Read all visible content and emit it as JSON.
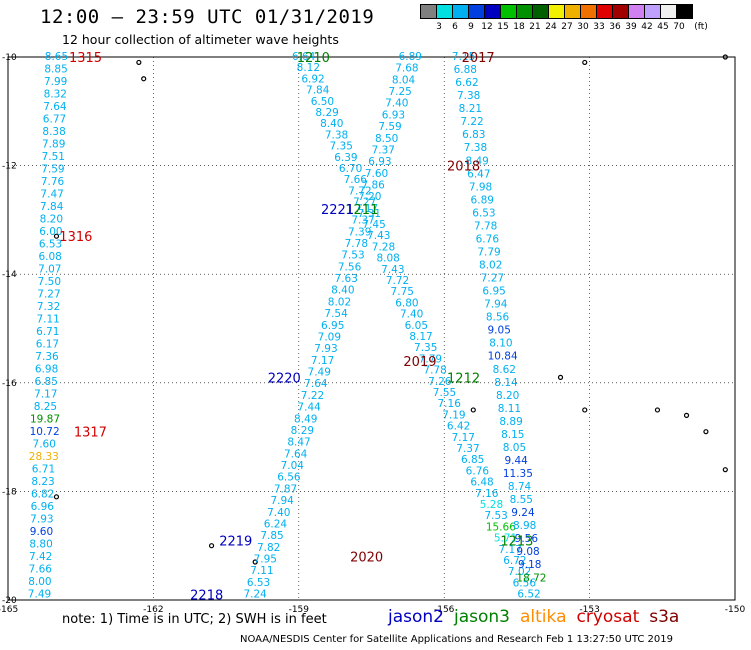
{
  "header": {
    "title": "12:00 – 23:59 UTC 01/31/2019",
    "subtitle": "12 hour collection of altimeter wave heights"
  },
  "colorbar": {
    "unit": "(ft)",
    "ticks": [
      "3",
      "6",
      "9",
      "12",
      "15",
      "18",
      "21",
      "24",
      "27",
      "30",
      "33",
      "36",
      "39",
      "42",
      "45",
      "70"
    ],
    "colors": [
      "#808080",
      "#00e0e0",
      "#00b0f0",
      "#0040e0",
      "#0000c0",
      "#00c000",
      "#009000",
      "#006000",
      "#f0f000",
      "#f0b000",
      "#f07000",
      "#e00000",
      "#a00000",
      "#d080f0",
      "#c0a0ff",
      "#f0f0f0",
      "#000000"
    ]
  },
  "footnote": "note:  1) Time is in UTC;  2) SWH is in feet",
  "credit": "NOAA/NESDIS Center for Satellite Applications and Research    Feb  1 13:27:50 UTC 2019",
  "missions": [
    {
      "name": "jason2",
      "color": "#0000c0"
    },
    {
      "name": "jason3",
      "color": "#008000"
    },
    {
      "name": "altika",
      "color": "#ff8c00"
    },
    {
      "name": "cryosat",
      "color": "#d00000"
    },
    {
      "name": "s3a",
      "color": "#800000"
    }
  ],
  "chart_data": {
    "type": "scatter",
    "title": "12:00 – 23:59 UTC 01/31/2019",
    "xlabel": "",
    "ylabel": "",
    "xlim": [
      -165,
      -150
    ],
    "ylim": [
      -20,
      -10
    ],
    "xticks": [
      "-165",
      "-162",
      "-159",
      "-156",
      "-153",
      "-150"
    ],
    "yticks": [
      "-10",
      "-12",
      "-14",
      "-16",
      "-18",
      "-20"
    ],
    "grid": true,
    "pass_labels": [
      {
        "text": "1315",
        "lon": -163.4,
        "lat": -10.0,
        "color": "#d00000"
      },
      {
        "text": "1316",
        "lon": -163.6,
        "lat": -13.3,
        "color": "#d00000"
      },
      {
        "text": "1317",
        "lon": -163.3,
        "lat": -16.9,
        "color": "#d00000"
      },
      {
        "text": "1210",
        "lon": -158.7,
        "lat": -10.0,
        "color": "#008000"
      },
      {
        "text": "1211",
        "lon": -157.7,
        "lat": -12.8,
        "color": "#008000"
      },
      {
        "text": "1212",
        "lon": -155.6,
        "lat": -15.9,
        "color": "#008000"
      },
      {
        "text": "1213",
        "lon": -154.5,
        "lat": -18.9,
        "color": "#008000"
      },
      {
        "text": "2017",
        "lon": -155.3,
        "lat": -10.0,
        "color": "#800000"
      },
      {
        "text": "2018",
        "lon": -155.6,
        "lat": -12.0,
        "color": "#800000"
      },
      {
        "text": "2019",
        "lon": -156.5,
        "lat": -15.6,
        "color": "#800000"
      },
      {
        "text": "2020",
        "lon": -157.6,
        "lat": -19.2,
        "color": "#800000"
      },
      {
        "text": "2221",
        "lon": -158.2,
        "lat": -12.8,
        "color": "#0000c0"
      },
      {
        "text": "2220",
        "lon": -159.3,
        "lat": -15.9,
        "color": "#0000c0"
      },
      {
        "text": "2219",
        "lon": -160.3,
        "lat": -18.9,
        "color": "#0000c0"
      },
      {
        "text": "2218",
        "lon": -160.9,
        "lat": -19.9,
        "color": "#0000c0"
      }
    ],
    "series": [
      {
        "name": "1315-1317",
        "start": [
          -164.0,
          -10.0
        ],
        "end": [
          -164.35,
          -19.9
        ],
        "values": [
          "8.65",
          "8.85",
          "7.99",
          "8.32",
          "7.64",
          "6.77",
          "8.38",
          "7.89",
          "7.51",
          "7.59",
          "7.76",
          "7.47",
          "7.84",
          "8.20",
          "6.00",
          "6.53",
          "6.08",
          "7.07",
          "7.50",
          "7.27",
          "7.32",
          "7.11",
          "6.71",
          "6.17",
          "7.36",
          "6.98",
          "6.85",
          "7.17",
          "8.25",
          "19.87",
          "10.72",
          "7.60",
          "28.33",
          "6.71",
          "8.23",
          "6.82",
          "6.96",
          "7.93",
          "9.60",
          "8.80",
          "7.42",
          "7.66",
          "8.00",
          "7.49"
        ]
      },
      {
        "name": "1210-1213",
        "start": [
          -158.9,
          -10.0
        ],
        "end": [
          -154.25,
          -19.9
        ],
        "values": [
          "6.64",
          "8.12",
          "6.92",
          "7.84",
          "6.50",
          "8.29",
          "8.40",
          "7.38",
          "7.35",
          "6.39",
          "6.70",
          "7.66",
          "7.72",
          "7.27",
          "7.31",
          "7.45",
          "7.43",
          "7.28",
          "8.08",
          "7.43",
          "7.72",
          "7.75",
          "6.80",
          "7.40",
          "6.05",
          "8.17",
          "7.35",
          "7.79",
          "7.78",
          "7.26",
          "7.55",
          "7.16",
          "7.19",
          "6.42",
          "7.17",
          "7.37",
          "6.85",
          "6.76",
          "6.48",
          "7.16",
          "5.28",
          "7.53",
          "15.66",
          "5.71",
          "7.17",
          "6.72",
          "7.02",
          "6.56",
          "6.52"
        ]
      },
      {
        "name": "2017-2020",
        "start": [
          -156.7,
          -10.0
        ],
        "end": [
          -159.9,
          -19.9
        ],
        "values": [
          "6.89",
          "7.68",
          "8.04",
          "7.25",
          "7.40",
          "6.93",
          "7.59",
          "8.50",
          "7.37",
          "6.93",
          "7.60",
          "7.86",
          "7.20",
          "7.17",
          "7.37",
          "7.39",
          "7.78",
          "7.53",
          "7.56",
          "7.63",
          "8.40",
          "8.02",
          "7.54",
          "6.95",
          "7.09",
          "7.93",
          "7.17",
          "7.49",
          "7.64",
          "7.22",
          "7.44",
          "8.49",
          "8.29",
          "8.47",
          "7.64",
          "7.04",
          "6.56",
          "7.87",
          "7.94",
          "7.40",
          "6.24",
          "7.85",
          "7.82",
          "7.95",
          "7.11",
          "6.53",
          "7.24"
        ]
      },
      {
        "name": "2221-2218",
        "start": [
          -155.6,
          -10.0
        ],
        "end": [
          -154.2,
          -19.6
        ],
        "values": [
          "7.15",
          "6.88",
          "6.62",
          "7.38",
          "8.21",
          "7.22",
          "6.83",
          "7.38",
          "8.49",
          "6.47",
          "7.98",
          "6.89",
          "6.53",
          "7.78",
          "6.76",
          "7.79",
          "8.02",
          "7.27",
          "6.95",
          "7.94",
          "8.56",
          "9.05",
          "8.10",
          "10.84",
          "8.62",
          "8.14",
          "8.20",
          "8.11",
          "8.89",
          "8.15",
          "8.05",
          "9.44",
          "11.35",
          "8.74",
          "8.55",
          "9.24",
          "8.98",
          "9.56",
          "9.08",
          "9.18",
          "18.72"
        ]
      }
    ],
    "islands": [
      {
        "lon": -162.3,
        "lat": -10.1
      },
      {
        "lon": -162.2,
        "lat": -10.4
      },
      {
        "lon": -164.0,
        "lat": -13.3
      },
      {
        "lon": -164.0,
        "lat": -18.1
      },
      {
        "lon": -160.8,
        "lat": -19.0
      },
      {
        "lon": -159.9,
        "lat": -19.3
      },
      {
        "lon": -153.6,
        "lat": -15.9
      },
      {
        "lon": -155.4,
        "lat": -16.5
      },
      {
        "lon": -153.1,
        "lat": -16.5
      },
      {
        "lon": -151.6,
        "lat": -16.5
      },
      {
        "lon": -151.0,
        "lat": -16.6
      },
      {
        "lon": -150.6,
        "lat": -16.9
      },
      {
        "lon": -150.2,
        "lat": -17.6
      },
      {
        "lon": -153.1,
        "lat": -10.1
      },
      {
        "lon": -150.2,
        "lat": -10.0
      }
    ]
  }
}
